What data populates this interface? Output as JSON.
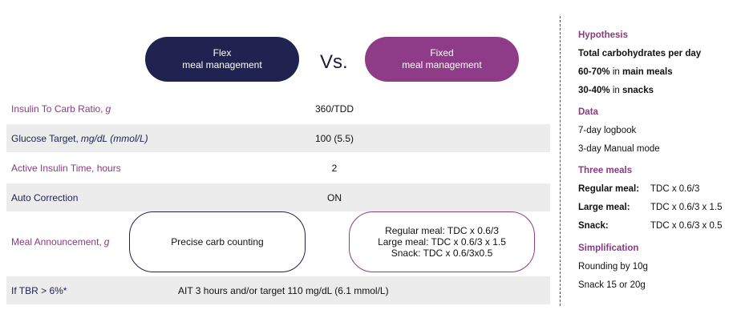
{
  "header": {
    "flex_line1": "Flex",
    "flex_line2": "meal management",
    "vs": "Vs.",
    "fixed_line1": "Fixed",
    "fixed_line2": "meal management"
  },
  "rows": [
    {
      "label": "Insulin To Carb Ratio,",
      "unit": "g",
      "value": "360/TDD"
    },
    {
      "label": "Glucose Target,",
      "unit": "mg/dL (mmol/L)",
      "value": "100 (5.5)"
    },
    {
      "label": "Active Insulin Time, hours",
      "unit": "",
      "value": "2"
    },
    {
      "label": "Auto Correction",
      "unit": "",
      "value": "ON"
    }
  ],
  "meal": {
    "label": "Meal Announcement,",
    "unit": "g",
    "flex": "Precise carb counting",
    "fixed": [
      "Regular meal: TDC x 0.6/3",
      "Large meal: TDC x 0.6/3 x 1.5",
      "Snack: TDC x 0.6/3x0.5"
    ]
  },
  "tbr": {
    "label": "If TBR > 6%*",
    "value": "AIT 3 hours and/or target 110 mg/dL (6.1 mmol/L)"
  },
  "side": {
    "hypothesis_title": "Hypothesis",
    "hyp_line1": "Total carbohydrates per day",
    "hyp_line2_bold": "60-70%",
    "hyp_line2_mid": " in ",
    "hyp_line2_end": "main meals",
    "hyp_line3_bold": "30-40%",
    "hyp_line3_mid": " in ",
    "hyp_line3_end": "snacks",
    "data_title": "Data",
    "data_line1": "7-day logbook",
    "data_line2": "3-day Manual mode",
    "meals_title": "Three meals",
    "meals": [
      {
        "key": "Regular meal:",
        "value": "TDC x 0.6/3"
      },
      {
        "key": "Large meal:",
        "value": "TDC x 0.6/3 x 1.5"
      },
      {
        "key": "Snack:",
        "value": "TDC x 0.6/3 x 0.5"
      }
    ],
    "simplification_title": "Simplification",
    "simp_line1": "Rounding by 10g",
    "simp_line2": "Snack 15 or 20g"
  },
  "colors": {
    "navy": "#20234f",
    "purple": "#8e3c87",
    "row_shade": "#ececec"
  }
}
